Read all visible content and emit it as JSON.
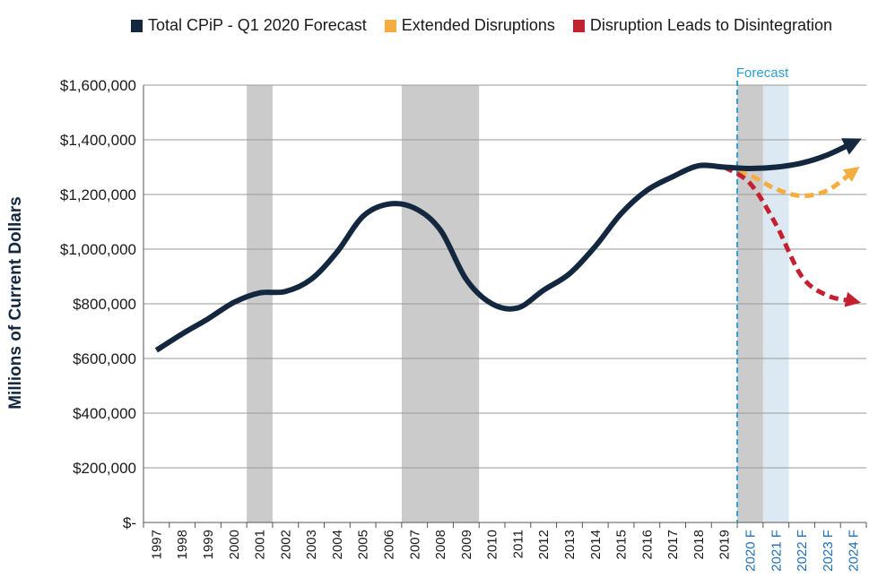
{
  "chart_data": {
    "type": "line",
    "ylabel": "Millions of Current Dollars",
    "ylim": [
      0,
      1600000
    ],
    "yticks": [
      {
        "value": 0,
        "label": "$-"
      },
      {
        "value": 200000,
        "label": "$200,000"
      },
      {
        "value": 400000,
        "label": "$400,000"
      },
      {
        "value": 600000,
        "label": "$600,000"
      },
      {
        "value": 800000,
        "label": "$800,000"
      },
      {
        "value": 1000000,
        "label": "$1,000,000"
      },
      {
        "value": 1200000,
        "label": "$1,200,000"
      },
      {
        "value": 1400000,
        "label": "$1,400,000"
      },
      {
        "value": 1600000,
        "label": "$1,600,000"
      }
    ],
    "categories": [
      "1997",
      "1998",
      "1999",
      "2000",
      "2001",
      "2002",
      "2003",
      "2004",
      "2005",
      "2006",
      "2007",
      "2008",
      "2009",
      "2010",
      "2011",
      "2012",
      "2013",
      "2014",
      "2015",
      "2016",
      "2017",
      "2018",
      "2019",
      "2020 F",
      "2021 F",
      "2022 F",
      "2023 F",
      "2024 F"
    ],
    "grid": true,
    "legend_position": "top",
    "annotation": {
      "label": "Forecast",
      "x": "2019"
    },
    "shaded_periods": [
      {
        "from": "2000",
        "to": "2001",
        "color": "#cccbcc"
      },
      {
        "from": "2006",
        "to": "2009",
        "color": "#cccbcc"
      },
      {
        "from": "2019",
        "to": "2020 F",
        "color": "#cccbcc"
      },
      {
        "from": "2020 F",
        "to": "2021 F",
        "color": "#dce9f2"
      }
    ],
    "series": [
      {
        "name": "Total CPiP - Q1 2020 Forecast",
        "color": "#13283f",
        "style": "solid",
        "x": [
          "1997",
          "1998",
          "1999",
          "2000",
          "2001",
          "2002",
          "2003",
          "2004",
          "2005",
          "2006",
          "2007",
          "2008",
          "2009",
          "2010",
          "2011",
          "2012",
          "2013",
          "2014",
          "2015",
          "2016",
          "2017",
          "2018",
          "2019",
          "2020 F",
          "2021 F",
          "2022 F",
          "2023 F",
          "2024 F"
        ],
        "values": [
          630000,
          690000,
          745000,
          805000,
          840000,
          845000,
          890000,
          990000,
          1120000,
          1165000,
          1150000,
          1070000,
          890000,
          800000,
          785000,
          850000,
          910000,
          1010000,
          1130000,
          1215000,
          1265000,
          1305000,
          1300000,
          1295000,
          1300000,
          1315000,
          1345000,
          1390000
        ]
      },
      {
        "name": "Extended Disruptions",
        "color": "#f5ad3f",
        "style": "dashed",
        "x": [
          "2019",
          "2020 F",
          "2021 F",
          "2022 F",
          "2023 F",
          "2024 F"
        ],
        "values": [
          1300000,
          1270000,
          1220000,
          1195000,
          1215000,
          1285000
        ]
      },
      {
        "name": "Disruption Leads to Disintegration",
        "color": "#c42130",
        "style": "dashed",
        "x": [
          "2019",
          "2020 F",
          "2021 F",
          "2022 F",
          "2023 F",
          "2024 F"
        ],
        "values": [
          1300000,
          1240000,
          1090000,
          900000,
          830000,
          810000
        ]
      }
    ]
  }
}
